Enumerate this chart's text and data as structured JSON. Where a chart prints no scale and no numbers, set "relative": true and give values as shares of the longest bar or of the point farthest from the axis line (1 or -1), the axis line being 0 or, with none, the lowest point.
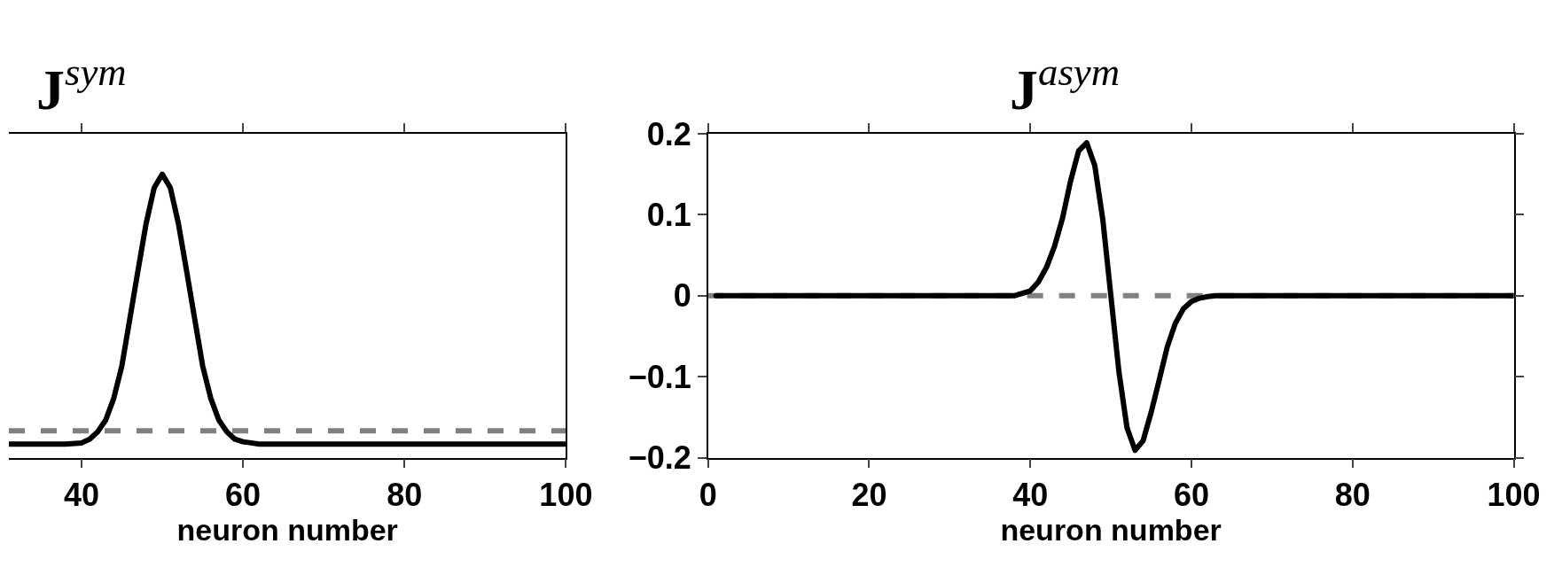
{
  "chart_data": [
    {
      "type": "line",
      "title": "J$^{sym}$",
      "xlabel": "neuron number",
      "relative": true,
      "xlim": [
        31,
        100
      ],
      "xticks": [
        40,
        60,
        80,
        100
      ],
      "grid": false,
      "marker": "none",
      "line_style": "solid",
      "x": [
        31,
        38,
        40,
        41,
        42,
        43,
        44,
        45,
        46,
        47,
        48,
        49,
        50,
        51,
        52,
        53,
        54,
        55,
        56,
        57,
        58,
        59,
        60,
        61,
        62,
        100
      ],
      "series": [
        {
          "color": "#000000",
          "values": [
            0.048,
            0.048,
            0.052,
            0.065,
            0.091,
            0.133,
            0.21,
            0.324,
            0.492,
            0.661,
            0.826,
            0.952,
            1,
            0.952,
            0.826,
            0.661,
            0.492,
            0.324,
            0.21,
            0.133,
            0.091,
            0.065,
            0.056,
            0.052,
            0.048,
            0.048
          ]
        }
      ],
      "ref_lines": [
        {
          "axis": "y",
          "value": 0.095,
          "color": "#808080",
          "line_style": "dashed"
        }
      ]
    },
    {
      "type": "line",
      "title": "J$^{asym}$",
      "xlabel": "neuron number",
      "xlim": [
        0,
        100
      ],
      "xticks": [
        0,
        20,
        40,
        60,
        80,
        100
      ],
      "ylim": [
        -0.2,
        0.2
      ],
      "yticks": [
        {
          "value": -0.2,
          "label": "−0.2"
        },
        {
          "value": -0.1,
          "label": "−0.1"
        },
        0,
        0.1,
        0.2
      ],
      "grid": false,
      "marker": "none",
      "line_style": "solid",
      "x": [
        1,
        38,
        39,
        40,
        41,
        42,
        43,
        44,
        45,
        46,
        47,
        48,
        49,
        50,
        51,
        52,
        53,
        54,
        55,
        56,
        57,
        58,
        59,
        60,
        61,
        62,
        63,
        100
      ],
      "series": [
        {
          "color": "#000000",
          "values": [
            0,
            0,
            0.003,
            0.006,
            0.017,
            0.035,
            0.061,
            0.096,
            0.142,
            0.179,
            0.189,
            0.161,
            0.094,
            0,
            -0.094,
            -0.163,
            -0.191,
            -0.179,
            -0.144,
            -0.104,
            -0.063,
            -0.034,
            -0.016,
            -0.007,
            -0.003,
            -0.001,
            0,
            0
          ]
        }
      ],
      "ref_lines": [
        {
          "axis": "y",
          "value": 0,
          "color": "#808080",
          "line_style": "dashed"
        }
      ]
    }
  ]
}
